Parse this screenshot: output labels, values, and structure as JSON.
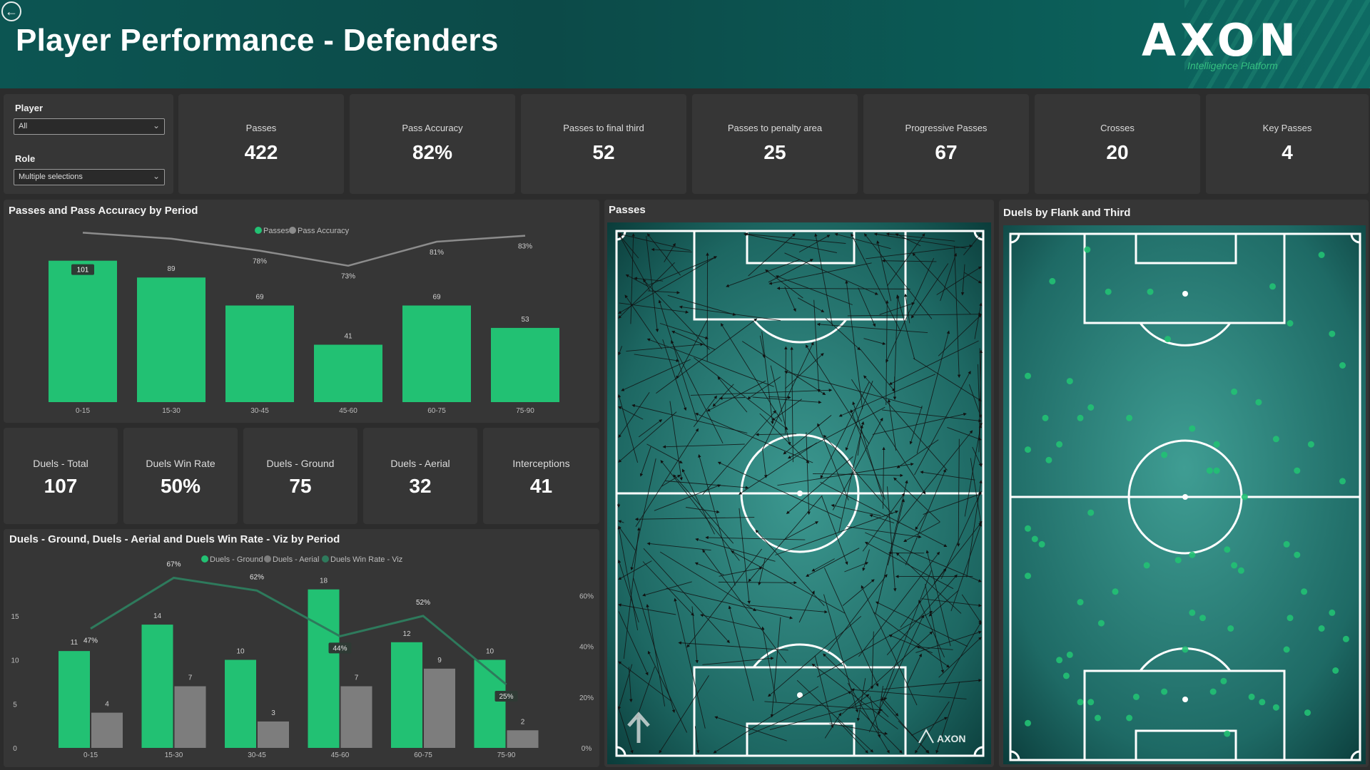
{
  "header": {
    "title": "Player Performance - Defenders",
    "brand": "AXON",
    "brand_tagline": "Intelligence Platform"
  },
  "filters": {
    "player_label": "Player",
    "player_value": "All",
    "role_label": "Role",
    "role_value": "Multiple selections"
  },
  "kpis": [
    {
      "label": "Passes",
      "value": "422"
    },
    {
      "label": "Pass Accuracy",
      "value": "82%"
    },
    {
      "label": "Passes to final third",
      "value": "52"
    },
    {
      "label": "Passes to penalty area",
      "value": "25"
    },
    {
      "label": "Progressive Passes",
      "value": "67"
    },
    {
      "label": "Crosses",
      "value": "20"
    },
    {
      "label": "Key Passes",
      "value": "4"
    }
  ],
  "duel_kpis": [
    {
      "label": "Duels - Total",
      "value": "107"
    },
    {
      "label": "Duels Win Rate",
      "value": "50%"
    },
    {
      "label": "Duels - Ground",
      "value": "75"
    },
    {
      "label": "Duels - Aerial",
      "value": "32"
    },
    {
      "label": "Interceptions",
      "value": "41"
    }
  ],
  "passes_chart": {
    "title": "Passes and Pass Accuracy by Period",
    "legend": [
      "Passes",
      "Pass Accuracy"
    ]
  },
  "duels_chart": {
    "title": "Duels - Ground, Duels - Aerial and Duels Win Rate - Viz by Period",
    "legend": [
      "Duels - Ground",
      "Duels - Aerial",
      "Duels Win Rate - Viz"
    ]
  },
  "pitch_passes": {
    "title": "Passes",
    "watermark": "AXON"
  },
  "pitch_duels": {
    "title": "Duels by Flank and Third"
  },
  "colors": {
    "accent_green": "#22c173",
    "aerial_gray": "#7d7d7d",
    "line_gray": "#8c8c8c",
    "winrate_line": "#2e7a5c",
    "panel_bg": "#363636",
    "page_bg": "#2c2c2c",
    "header_teal": "#0c5552"
  },
  "icons": {
    "back": "arrow-left-circle-icon",
    "direction": "up-arrow-icon"
  },
  "chart_data": [
    {
      "type": "bar",
      "title": "Passes and Pass Accuracy by Period",
      "categories": [
        "0-15",
        "15-30",
        "30-45",
        "45-60",
        "60-75",
        "75-90"
      ],
      "series": [
        {
          "name": "Passes",
          "type": "bar",
          "values": [
            101,
            89,
            69,
            41,
            69,
            53
          ],
          "labels": [
            "101",
            "89",
            "69",
            "41",
            "69",
            "53"
          ]
        },
        {
          "name": "Pass Accuracy",
          "type": "line",
          "values": [
            84,
            82,
            78,
            73,
            81,
            83
          ],
          "labels": [
            "",
            "",
            "78%",
            "73%",
            "81%",
            "83%"
          ]
        }
      ],
      "ylim": [
        0,
        110
      ],
      "y2lim": [
        0,
        100
      ],
      "legend": "top-center"
    },
    {
      "type": "bar",
      "title": "Duels - Ground, Duels - Aerial and Duels Win Rate - Viz by Period",
      "categories": [
        "0-15",
        "15-30",
        "30-45",
        "45-60",
        "60-75",
        "75-90"
      ],
      "series": [
        {
          "name": "Duels - Ground",
          "type": "bar",
          "values": [
            11,
            14,
            10,
            18,
            12,
            10
          ]
        },
        {
          "name": "Duels - Aerial",
          "type": "bar",
          "values": [
            4,
            7,
            3,
            7,
            9,
            2
          ]
        },
        {
          "name": "Duels Win Rate - Viz",
          "type": "line",
          "values": [
            47,
            67,
            62,
            44,
            52,
            25
          ],
          "labels": [
            "47%",
            "67%",
            "62%",
            "44%",
            "52%",
            "25%"
          ]
        }
      ],
      "y_ticks": [
        "0",
        "5",
        "10",
        "15"
      ],
      "y2_ticks": [
        "0%",
        "20%",
        "40%",
        "60%"
      ],
      "ylim": [
        0,
        20
      ],
      "y2lim": [
        0,
        80
      ],
      "legend": "top-center"
    },
    {
      "type": "scatter",
      "title": "Duels by Flank and Third",
      "x": [
        0.22,
        0.89,
        0.12,
        0.28,
        0.4,
        0.75,
        0.8,
        0.92,
        0.45,
        0.05,
        0.17,
        0.23,
        0.64,
        0.71,
        0.95,
        0.1,
        0.2,
        0.34,
        0.52,
        0.59,
        0.86,
        0.05,
        0.14,
        0.11,
        0.44,
        0.57,
        0.59,
        0.76,
        0.67,
        0.82,
        0.95,
        0.23,
        0.48,
        0.79,
        0.07,
        0.09,
        0.05,
        0.52,
        0.62,
        0.39,
        0.64,
        0.66,
        0.82,
        0.3,
        0.84,
        0.05,
        0.2,
        0.52,
        0.26,
        0.55,
        0.63,
        0.8,
        0.89,
        0.96,
        0.92,
        0.17,
        0.14,
        0.16,
        0.5,
        0.79,
        0.2,
        0.44,
        0.69,
        0.93,
        0.23,
        0.36,
        0.61,
        0.72,
        0.76,
        0.34,
        0.62,
        0.05,
        0.25,
        0.58,
        0.85
      ],
      "y": [
        0.03,
        0.04,
        0.09,
        0.11,
        0.11,
        0.1,
        0.17,
        0.19,
        0.2,
        0.27,
        0.28,
        0.33,
        0.3,
        0.32,
        0.25,
        0.35,
        0.35,
        0.35,
        0.37,
        0.4,
        0.4,
        0.41,
        0.4,
        0.43,
        0.42,
        0.45,
        0.45,
        0.39,
        0.5,
        0.45,
        0.47,
        0.53,
        0.62,
        0.59,
        0.58,
        0.59,
        0.56,
        0.61,
        0.6,
        0.63,
        0.63,
        0.64,
        0.61,
        0.68,
        0.68,
        0.65,
        0.7,
        0.72,
        0.74,
        0.73,
        0.75,
        0.73,
        0.75,
        0.77,
        0.72,
        0.8,
        0.81,
        0.84,
        0.79,
        0.79,
        0.89,
        0.87,
        0.88,
        0.83,
        0.89,
        0.88,
        0.85,
        0.89,
        0.9,
        0.92,
        0.95,
        0.93,
        0.92,
        0.87,
        0.91
      ],
      "xlim": [
        0,
        1
      ],
      "ylim": [
        0,
        1
      ]
    }
  ]
}
